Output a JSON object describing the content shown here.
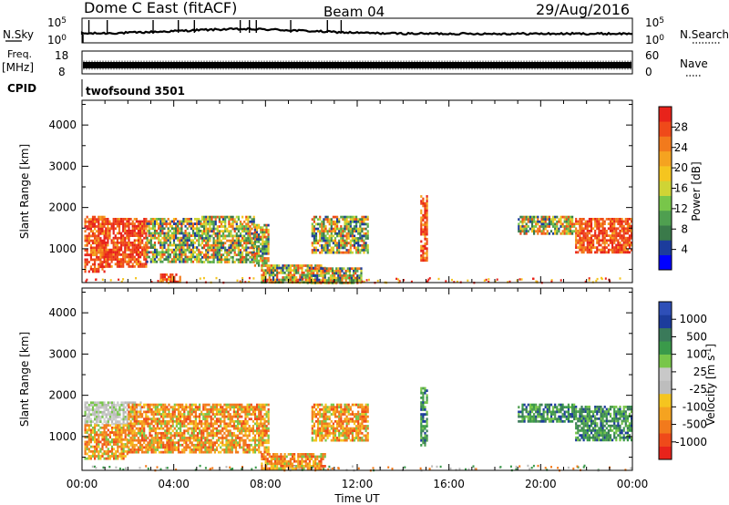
{
  "header": {
    "station": "Dome C East (fitACF)",
    "beam": "Beam 04",
    "date": "29/Aug/2016"
  },
  "top_panels": {
    "nsky_label": "N.Sky",
    "nsky_ticks": [
      "10^5",
      "10^0"
    ],
    "nsearch_label": "N.Search",
    "nsearch_ticks": [
      "10^5",
      "10^0"
    ],
    "freq_label": "Freq.",
    "freq_unit": "[MHz]",
    "freq_ticks": [
      "18",
      "8"
    ],
    "nave_label": "Nave",
    "nave_ticks": [
      "60",
      "0"
    ],
    "cpid_label": "CPID",
    "cpid_value": "twofsound 3501"
  },
  "chart_data": [
    {
      "type": "heatmap",
      "name": "power",
      "ylabel": "Slant Range [km]",
      "xlabel": "Time UT",
      "x_ticks": [
        "00:00",
        "04:00",
        "08:00",
        "12:00",
        "16:00",
        "20:00",
        "00:00"
      ],
      "x_range_hours": [
        0,
        24
      ],
      "ylim": [
        180,
        4600
      ],
      "y_ticks": [
        1000,
        2000,
        3000,
        4000
      ],
      "colorbar": {
        "label": "Power [dB]",
        "tick_labels": [
          "28",
          "24",
          "20",
          "16",
          "12",
          "8",
          "4"
        ],
        "colors": [
          "#0000ff",
          "#1c3c9c",
          "#3a7a4a",
          "#4f9f50",
          "#78c64a",
          "#cfd435",
          "#f5c51f",
          "#f5a320",
          "#f27a1c",
          "#ef4a1a",
          "#e8231b"
        ]
      },
      "regions": [
        {
          "t": [
            0.1,
            1.0
          ],
          "r": [
            450,
            1800
          ],
          "level": "high"
        },
        {
          "t": [
            1.0,
            2.8
          ],
          "r": [
            600,
            1750
          ],
          "level": "high"
        },
        {
          "t": [
            2.8,
            5.2
          ],
          "r": [
            700,
            1750
          ],
          "level": "mixed"
        },
        {
          "t": [
            5.2,
            7.5
          ],
          "r": [
            700,
            1800
          ],
          "level": "mixed"
        },
        {
          "t": [
            7.5,
            8.1
          ],
          "r": [
            600,
            1600
          ],
          "level": "mixed"
        },
        {
          "t": [
            7.8,
            10.6
          ],
          "r": [
            200,
            620
          ],
          "level": "mixed"
        },
        {
          "t": [
            9.8,
            12.2
          ],
          "r": [
            200,
            550
          ],
          "level": "mixed"
        },
        {
          "t": [
            10.0,
            12.5
          ],
          "r": [
            900,
            1800
          ],
          "level": "mixed"
        },
        {
          "t": [
            3.4,
            4.3
          ],
          "r": [
            200,
            400
          ],
          "level": "high"
        },
        {
          "t": [
            14.75,
            15.05
          ],
          "r": [
            700,
            2300
          ],
          "level": "high"
        },
        {
          "t": [
            19.0,
            21.5
          ],
          "r": [
            1350,
            1800
          ],
          "level": "mixed"
        },
        {
          "t": [
            21.5,
            24.0
          ],
          "r": [
            900,
            1750
          ],
          "level": "high"
        }
      ]
    },
    {
      "type": "heatmap",
      "name": "velocity",
      "ylabel": "Slant Range [km]",
      "xlabel": "Time UT",
      "x_ticks": [
        "00:00",
        "04:00",
        "08:00",
        "12:00",
        "16:00",
        "20:00",
        "00:00"
      ],
      "x_range_hours": [
        0,
        24
      ],
      "ylim": [
        180,
        4600
      ],
      "y_ticks": [
        1000,
        2000,
        3000,
        4000
      ],
      "colorbar": {
        "label": "Velocity [m s^-1]",
        "tick_labels": [
          "1000",
          "500",
          "100",
          "25",
          "-25",
          "-100",
          "-500",
          "-1000"
        ],
        "colors": [
          "#e8231b",
          "#ef4a1a",
          "#f27a1c",
          "#f5a320",
          "#f5c51f",
          "#bdbdbd",
          "#c8c8c8",
          "#78c64a",
          "#3a9a4a",
          "#3a7a5a",
          "#1c3c9c",
          "#2e4fb8"
        ]
      },
      "regions": [
        {
          "t": [
            0.1,
            2.6
          ],
          "r": [
            1300,
            1850
          ],
          "level": "gray"
        },
        {
          "t": [
            0.1,
            2.0
          ],
          "r": [
            450,
            1300
          ],
          "level": "neg"
        },
        {
          "t": [
            2.0,
            8.1
          ],
          "r": [
            650,
            1800
          ],
          "level": "neg"
        },
        {
          "t": [
            7.8,
            10.6
          ],
          "r": [
            200,
            600
          ],
          "level": "neg"
        },
        {
          "t": [
            10.0,
            12.5
          ],
          "r": [
            900,
            1800
          ],
          "level": "neg"
        },
        {
          "t": [
            14.75,
            15.05
          ],
          "r": [
            800,
            2200
          ],
          "level": "pos"
        },
        {
          "t": [
            19.0,
            21.5
          ],
          "r": [
            1350,
            1800
          ],
          "level": "pos"
        },
        {
          "t": [
            21.5,
            24.0
          ],
          "r": [
            900,
            1750
          ],
          "level": "pos"
        }
      ]
    }
  ]
}
